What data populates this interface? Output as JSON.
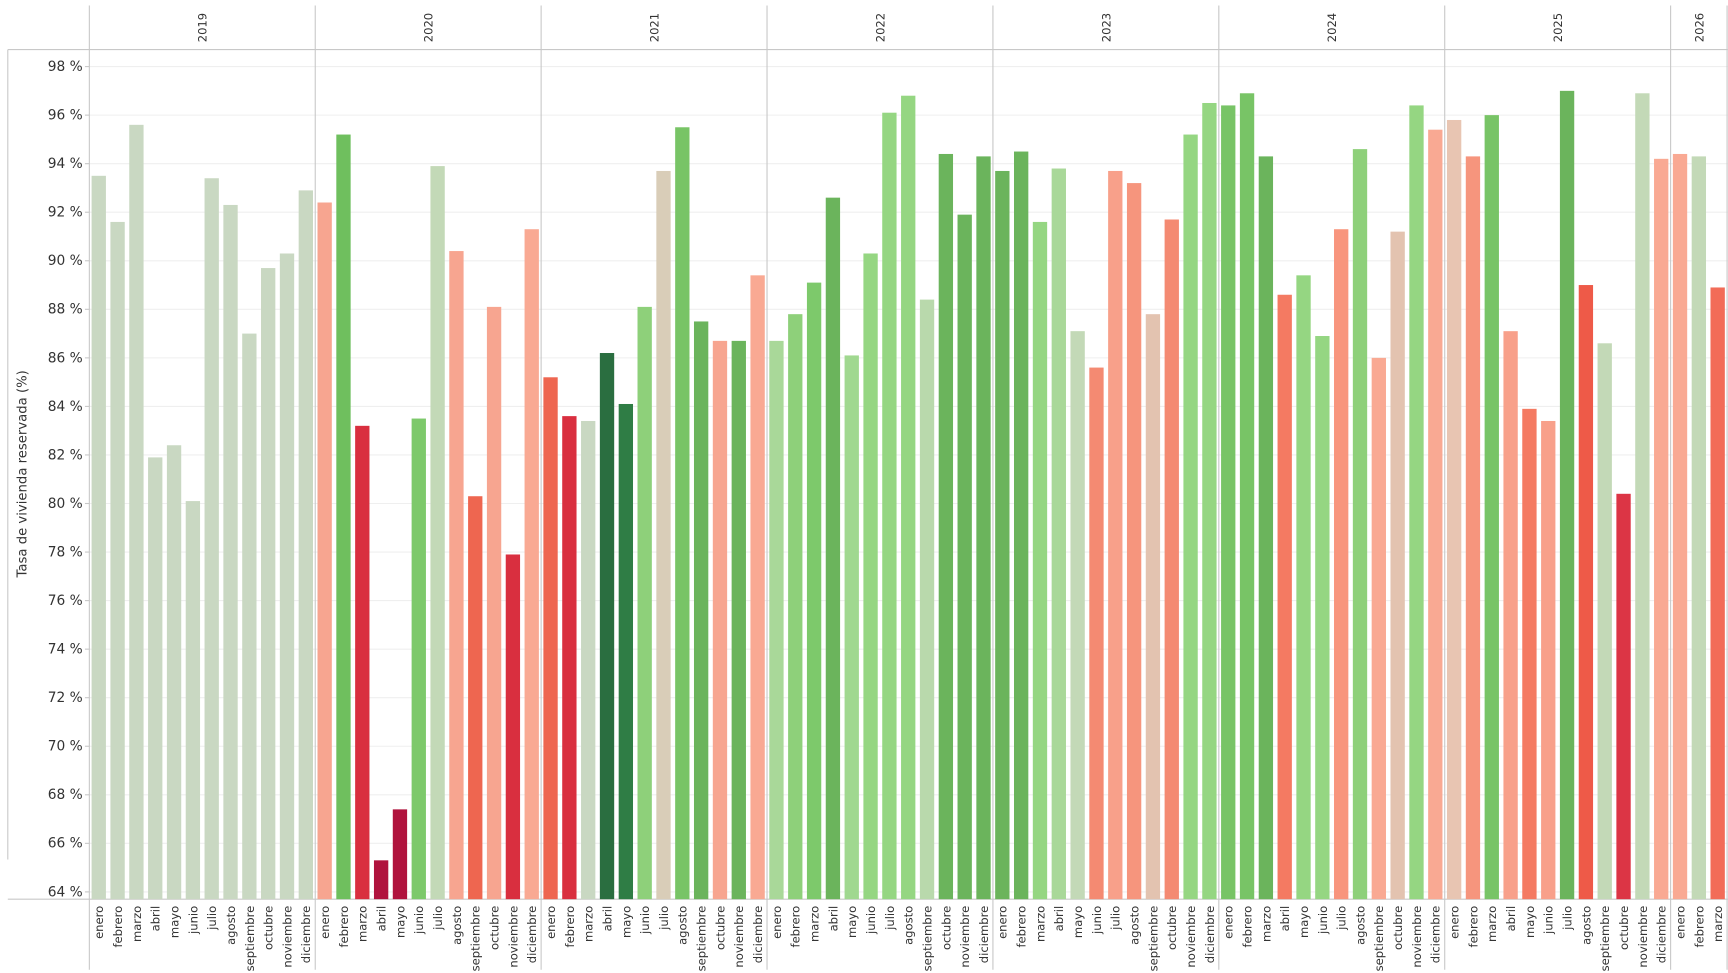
{
  "chart_data": {
    "type": "bar",
    "y_label": "Tasa de vivienda reservada (%)",
    "ylim": [
      63.7,
      98.7
    ],
    "yticks": [
      {
        "value": 64,
        "label": "64 %"
      },
      {
        "value": 66,
        "label": "66 %"
      },
      {
        "value": 68,
        "label": "68 %"
      },
      {
        "value": 70,
        "label": "70 %"
      },
      {
        "value": 72,
        "label": "72 %"
      },
      {
        "value": 74,
        "label": "74 %"
      },
      {
        "value": 76,
        "label": "76 %"
      },
      {
        "value": 78,
        "label": "78 %"
      },
      {
        "value": 80,
        "label": "80 %"
      },
      {
        "value": 82,
        "label": "82 %"
      },
      {
        "value": 84,
        "label": "84 %"
      },
      {
        "value": 86,
        "label": "86 %"
      },
      {
        "value": 88,
        "label": "88 %"
      },
      {
        "value": 90,
        "label": "90 %"
      },
      {
        "value": 92,
        "label": "92 %"
      },
      {
        "value": 94,
        "label": "94 %"
      },
      {
        "value": 96,
        "label": "96 %"
      },
      {
        "value": 98,
        "label": "98 %"
      }
    ],
    "grid": true,
    "groups": [
      {
        "name": "2019",
        "categories": [
          "enero",
          "febrero",
          "marzo",
          "abril",
          "mayo",
          "junio",
          "julio",
          "agosto",
          "septiembre",
          "octubre",
          "noviembre",
          "diciembre"
        ],
        "values": [
          93.5,
          91.6,
          95.6,
          81.9,
          82.4,
          80.1,
          93.4,
          92.3,
          87.0,
          89.7,
          90.3,
          92.9
        ],
        "colors": [
          "#c9d8c2",
          "#c9d8c2",
          "#c9d8c2",
          "#c9d8c2",
          "#c9d8c2",
          "#c9d8c2",
          "#c9d8c2",
          "#c9d8c2",
          "#c9d8c2",
          "#c9d8c2",
          "#c9d8c2",
          "#c9d8c2"
        ]
      },
      {
        "name": "2020",
        "categories": [
          "enero",
          "febrero",
          "marzo",
          "abril",
          "mayo",
          "junio",
          "julio",
          "agosto",
          "septiembre",
          "octubre",
          "noviembre",
          "diciembre"
        ],
        "values": [
          92.4,
          95.2,
          83.2,
          65.3,
          67.4,
          83.5,
          93.9,
          90.4,
          80.3,
          88.1,
          77.9,
          91.3
        ],
        "colors": [
          "#f7a590",
          "#6fbf5e",
          "#d92f3f",
          "#b0133d",
          "#b0133d",
          "#7dc96b",
          "#c3d9b7",
          "#f7a590",
          "#ee6650",
          "#f7a590",
          "#d92f3f",
          "#f9a993"
        ]
      },
      {
        "name": "2021",
        "categories": [
          "enero",
          "febrero",
          "marzo",
          "abril",
          "mayo",
          "junio",
          "julio",
          "agosto",
          "septiembre",
          "octubre",
          "noviembre",
          "diciembre"
        ],
        "values": [
          85.2,
          83.6,
          83.4,
          86.2,
          84.1,
          88.1,
          93.7,
          95.5,
          87.5,
          86.7,
          86.7,
          89.4
        ],
        "colors": [
          "#ee6650",
          "#d92f3f",
          "#c9d8c2",
          "#2a6e40",
          "#2f7d45",
          "#8ed07a",
          "#d9cdb8",
          "#78c466",
          "#6bb45c",
          "#f7a590",
          "#6bb45c",
          "#f9a993"
        ]
      },
      {
        "name": "2022",
        "categories": [
          "enero",
          "febrero",
          "marzo",
          "abril",
          "mayo",
          "junio",
          "julio",
          "agosto",
          "septiembre",
          "octubre",
          "noviembre",
          "diciembre"
        ],
        "values": [
          86.7,
          87.8,
          89.1,
          92.6,
          86.1,
          90.3,
          96.1,
          96.8,
          88.4,
          94.4,
          91.9,
          94.3
        ],
        "colors": [
          "#a9d899",
          "#8ed07a",
          "#7dc96b",
          "#6bb45c",
          "#a0d890",
          "#95d682",
          "#95d682",
          "#95d682",
          "#b9d9ac",
          "#6bb45c",
          "#6bb45c",
          "#6bb45c"
        ]
      },
      {
        "name": "2023",
        "categories": [
          "enero",
          "febrero",
          "marzo",
          "abril",
          "mayo",
          "junio",
          "julio",
          "agosto",
          "septiembre",
          "octubre",
          "noviembre",
          "diciembre"
        ],
        "values": [
          93.7,
          94.5,
          91.6,
          93.8,
          87.1,
          85.6,
          93.7,
          93.2,
          87.8,
          91.7,
          95.2,
          96.5
        ],
        "colors": [
          "#6bb45c",
          "#6bb45c",
          "#95d682",
          "#a9d899",
          "#c3d9b7",
          "#f48a72",
          "#f8a08a",
          "#f6957d",
          "#e3c3b0",
          "#f48a72",
          "#95d682",
          "#95d682"
        ]
      },
      {
        "name": "2024",
        "categories": [
          "enero",
          "febrero",
          "marzo",
          "abril",
          "mayo",
          "junio",
          "julio",
          "agosto",
          "septiembre",
          "octubre",
          "noviembre",
          "diciembre"
        ],
        "values": [
          96.4,
          96.9,
          94.3,
          88.6,
          89.4,
          86.9,
          91.3,
          94.6,
          86.0,
          91.2,
          96.4,
          95.4
        ],
        "colors": [
          "#78c466",
          "#78c466",
          "#6bb45c",
          "#f47a62",
          "#95d682",
          "#95d682",
          "#f8957d",
          "#8ed07a",
          "#f9a993",
          "#e3c3b0",
          "#95d682",
          "#f9a993"
        ]
      },
      {
        "name": "2025",
        "categories": [
          "enero",
          "febrero",
          "marzo",
          "abril",
          "mayo",
          "junio",
          "julio",
          "agosto",
          "septiembre",
          "octubre",
          "noviembre",
          "diciembre"
        ],
        "values": [
          95.8,
          94.3,
          96.0,
          87.1,
          83.9,
          83.4,
          97.0,
          89.0,
          86.6,
          80.4,
          96.9,
          94.2
        ],
        "colors": [
          "#e8c5b2",
          "#f6957d",
          "#78c466",
          "#f8a08a",
          "#f47a62",
          "#f8a08a",
          "#6bb45c",
          "#ee5a48",
          "#c3d9b7",
          "#dc3545",
          "#c3d9b7",
          "#f9a993"
        ]
      },
      {
        "name": "2026",
        "categories": [
          "enero",
          "febrero",
          "marzo"
        ],
        "values": [
          94.4,
          94.3,
          88.9
        ],
        "colors": [
          "#f9a993",
          "#c3d9b7",
          "#f26c58"
        ]
      }
    ]
  }
}
